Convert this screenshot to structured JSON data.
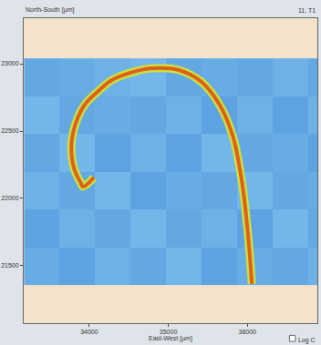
{
  "chart_data": {
    "type": "heatmap",
    "x_label": "East-West [µm]",
    "y_label": "North-South [µm]",
    "annotations": [
      "11. T1",
      "Log C"
    ],
    "xlim": [
      33170,
      36886
    ],
    "ylim": [
      21074,
      23338
    ],
    "xticks": [
      34000,
      35000,
      36000
    ],
    "yticks": [
      21500,
      22000,
      22500,
      23000
    ],
    "grid": false,
    "cells": {
      "x": [
        33400,
        33850,
        34300,
        34750,
        35200,
        35650,
        36100,
        36550,
        37000
      ],
      "y": [
        21500,
        21780,
        22060,
        22340,
        22620,
        22900
      ],
      "z": [
        [
          1.6,
          1.4,
          1.7,
          1.5,
          1.8,
          1.4,
          1.6,
          1.5,
          1.7
        ],
        [
          1.4,
          1.7,
          1.5,
          1.8,
          1.5,
          1.7,
          1.4,
          1.8,
          1.5
        ],
        [
          1.7,
          1.5,
          1.8,
          1.4,
          1.6,
          1.5,
          1.8,
          1.5,
          1.6
        ],
        [
          1.5,
          1.8,
          1.4,
          1.7,
          1.4,
          1.8,
          1.5,
          1.6,
          1.4
        ],
        [
          1.8,
          1.5,
          1.6,
          1.5,
          1.7,
          1.4,
          1.7,
          1.4,
          1.7
        ],
        [
          1.5,
          1.6,
          1.7,
          1.8,
          1.5,
          1.6,
          1.5,
          1.7,
          1.5
        ]
      ]
    },
    "zlim": [
      0,
      10
    ],
    "series": [
      {
        "type": "line",
        "color": "#c8e040",
        "x": [
          36057,
          36011,
          35932,
          35818,
          35648,
          35420,
          35136,
          34795,
          34511,
          34284,
          34114,
          33943,
          33830,
          33773,
          33807,
          33886,
          33920,
          34057
        ],
        "y": [
          21365,
          21716,
          22122,
          22459,
          22696,
          22865,
          22953,
          22966,
          22932,
          22878,
          22797,
          22696,
          22561,
          22392,
          22223,
          22122,
          22088,
          22155
        ]
      },
      {
        "type": "line",
        "color": "#e0601a",
        "x": [
          36057,
          36011,
          35932,
          35818,
          35648,
          35420,
          35136,
          34795,
          34511,
          34284,
          34114,
          33943,
          33830,
          33773,
          33807,
          33886,
          33920,
          34057
        ],
        "y": [
          21365,
          21716,
          22122,
          22459,
          22696,
          22865,
          22953,
          22966,
          22932,
          22878,
          22797,
          22696,
          22561,
          22392,
          22223,
          22122,
          22088,
          22155
        ]
      }
    ]
  }
}
